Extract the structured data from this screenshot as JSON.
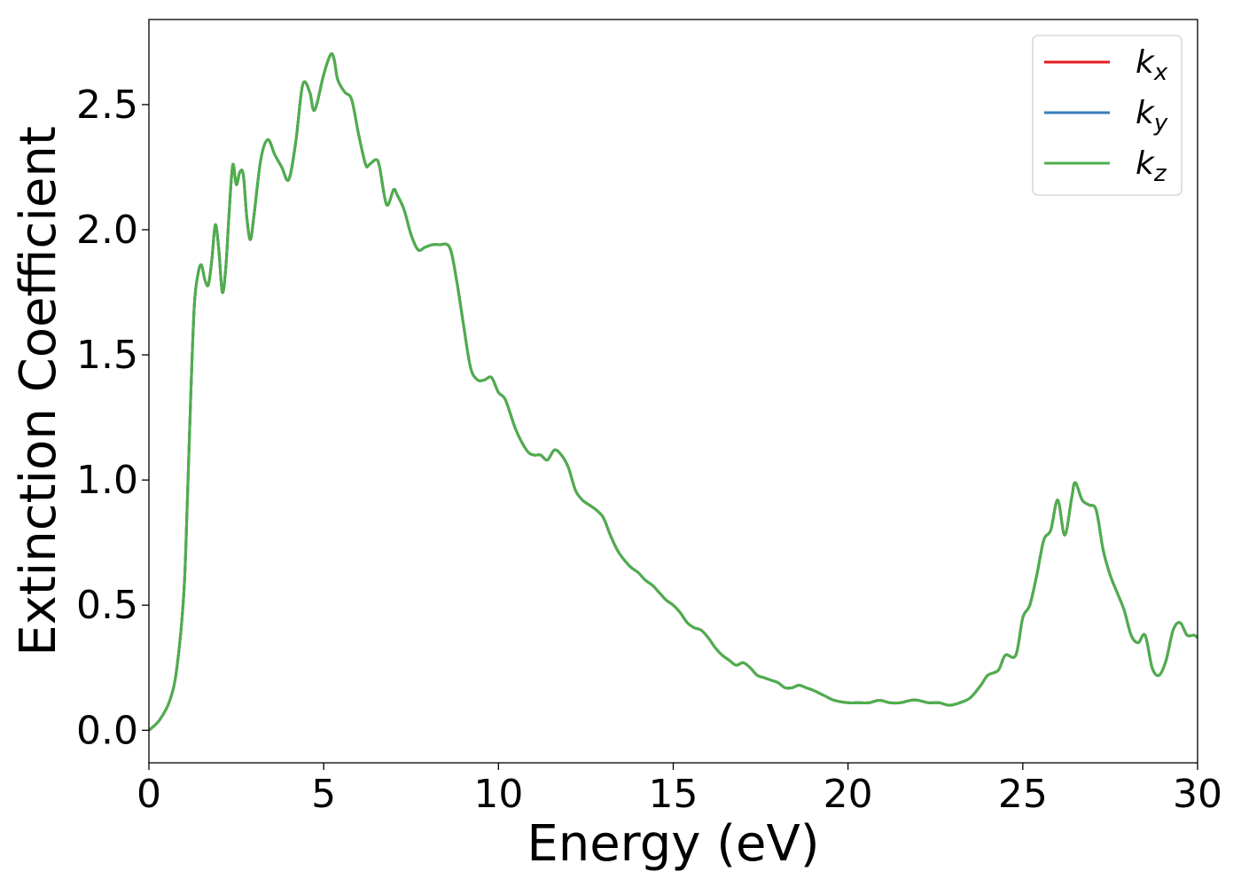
{
  "chart_data": {
    "type": "line",
    "title": "",
    "xlabel": "Energy (eV)",
    "ylabel": "Extinction Coefficient",
    "xlim": [
      0,
      30
    ],
    "ylim": [
      -0.13,
      2.84
    ],
    "xticks": [
      "0",
      "5",
      "10",
      "15",
      "20",
      "25",
      "30"
    ],
    "yticks": [
      "0.0",
      "0.5",
      "1.0",
      "1.5",
      "2.0",
      "2.5"
    ],
    "grid": false,
    "legend_position": "top-right",
    "series": [
      {
        "name": "k",
        "subscript": "x",
        "color": "#e41a1c"
      },
      {
        "name": "k",
        "subscript": "y",
        "color": "#377eb8"
      },
      {
        "name": "k",
        "subscript": "z",
        "color": "#4daf4a"
      }
    ],
    "x": [
      0,
      0.3,
      0.6,
      0.8,
      1.0,
      1.1,
      1.2,
      1.3,
      1.4,
      1.5,
      1.6,
      1.7,
      1.8,
      1.9,
      2.0,
      2.1,
      2.2,
      2.3,
      2.4,
      2.5,
      2.6,
      2.7,
      2.8,
      2.9,
      3.0,
      3.2,
      3.4,
      3.6,
      3.8,
      4.0,
      4.2,
      4.4,
      4.6,
      4.7,
      4.8,
      5.0,
      5.2,
      5.3,
      5.4,
      5.6,
      5.8,
      6.0,
      6.2,
      6.3,
      6.5,
      6.6,
      6.8,
      7.0,
      7.1,
      7.3,
      7.5,
      7.7,
      7.9,
      8.1,
      8.3,
      8.6,
      8.8,
      9.0,
      9.2,
      9.4,
      9.6,
      9.8,
      10.0,
      10.2,
      10.5,
      10.8,
      11.0,
      11.2,
      11.4,
      11.6,
      11.8,
      12.0,
      12.2,
      12.4,
      12.6,
      12.8,
      13.0,
      13.2,
      13.4,
      13.6,
      13.8,
      14.0,
      14.2,
      14.4,
      14.6,
      14.8,
      15.0,
      15.2,
      15.4,
      15.6,
      15.8,
      16.0,
      16.2,
      16.4,
      16.6,
      16.8,
      17.0,
      17.2,
      17.4,
      17.6,
      17.8,
      18.0,
      18.2,
      18.4,
      18.6,
      18.8,
      19.0,
      19.3,
      19.6,
      20.0,
      20.3,
      20.6,
      20.9,
      21.2,
      21.5,
      21.8,
      22.0,
      22.3,
      22.6,
      22.9,
      23.2,
      23.5,
      23.8,
      24.0,
      24.3,
      24.5,
      24.8,
      25.0,
      25.2,
      25.4,
      25.6,
      25.8,
      26.0,
      26.2,
      26.4,
      26.5,
      26.7,
      26.9,
      27.1,
      27.3,
      27.5,
      27.7,
      27.9,
      28.1,
      28.3,
      28.5,
      28.7,
      28.9,
      29.1,
      29.3,
      29.5,
      29.7,
      29.9,
      30.0
    ],
    "y": [
      0.0,
      0.04,
      0.12,
      0.25,
      0.55,
      0.92,
      1.35,
      1.7,
      1.82,
      1.86,
      1.8,
      1.78,
      1.88,
      2.02,
      1.92,
      1.75,
      1.85,
      2.08,
      2.26,
      2.18,
      2.23,
      2.22,
      2.05,
      1.96,
      2.05,
      2.28,
      2.36,
      2.3,
      2.25,
      2.2,
      2.35,
      2.58,
      2.55,
      2.48,
      2.5,
      2.62,
      2.7,
      2.68,
      2.6,
      2.55,
      2.52,
      2.38,
      2.26,
      2.26,
      2.28,
      2.25,
      2.1,
      2.16,
      2.14,
      2.08,
      1.98,
      1.92,
      1.93,
      1.94,
      1.94,
      1.93,
      1.8,
      1.62,
      1.45,
      1.4,
      1.4,
      1.41,
      1.35,
      1.32,
      1.2,
      1.12,
      1.1,
      1.1,
      1.08,
      1.12,
      1.1,
      1.05,
      0.96,
      0.92,
      0.9,
      0.88,
      0.85,
      0.78,
      0.72,
      0.68,
      0.65,
      0.63,
      0.6,
      0.58,
      0.55,
      0.52,
      0.5,
      0.47,
      0.43,
      0.41,
      0.4,
      0.37,
      0.33,
      0.3,
      0.28,
      0.26,
      0.27,
      0.25,
      0.22,
      0.21,
      0.2,
      0.19,
      0.17,
      0.17,
      0.18,
      0.17,
      0.16,
      0.14,
      0.12,
      0.11,
      0.11,
      0.11,
      0.12,
      0.11,
      0.11,
      0.12,
      0.12,
      0.11,
      0.11,
      0.1,
      0.11,
      0.13,
      0.18,
      0.22,
      0.24,
      0.3,
      0.3,
      0.45,
      0.5,
      0.62,
      0.76,
      0.8,
      0.92,
      0.78,
      0.93,
      0.99,
      0.92,
      0.9,
      0.88,
      0.72,
      0.62,
      0.55,
      0.48,
      0.38,
      0.35,
      0.38,
      0.25,
      0.22,
      0.28,
      0.4,
      0.43,
      0.38,
      0.38,
      0.37
    ]
  }
}
